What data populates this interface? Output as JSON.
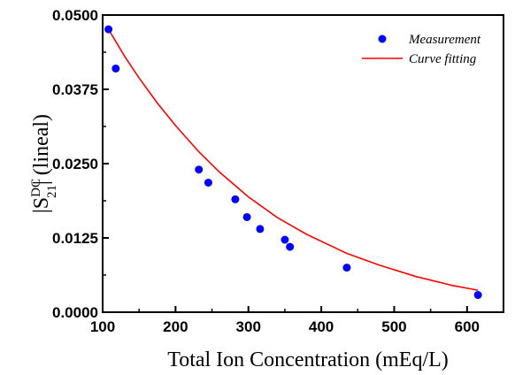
{
  "chart_data": {
    "type": "scatter",
    "xlabel": "Total Ion Concentration (mEq/L)",
    "ylabel": {
      "prefix": "|S",
      "sup": "DC",
      "sub": "21",
      "suffix": "| (lineal)"
    },
    "xlim": [
      100,
      650
    ],
    "ylim": [
      0.0,
      0.05
    ],
    "x_ticks": [
      100,
      200,
      300,
      400,
      500,
      600
    ],
    "x_tick_labels": [
      "100",
      "200",
      "300",
      "400",
      "500",
      "600"
    ],
    "y_ticks": [
      0.0,
      0.0125,
      0.025,
      0.0375,
      0.05
    ],
    "y_tick_labels": [
      "0.0000",
      "0.0125",
      "0.0250",
      "0.0375",
      "0.0500"
    ],
    "grid": false,
    "legend_position": "top-right",
    "series": [
      {
        "name": "Measurement",
        "kind": "scatter",
        "color": "#0000ff",
        "x": [
          108,
          118,
          232,
          245,
          282,
          298,
          316,
          350,
          357,
          435,
          615
        ],
        "y": [
          0.0476,
          0.041,
          0.024,
          0.0218,
          0.019,
          0.016,
          0.014,
          0.0122,
          0.011,
          0.0075,
          0.0029
        ]
      },
      {
        "name": "Curve fitting",
        "kind": "line",
        "color": "#ff0000",
        "x": [
          108,
          130,
          150,
          175,
          200,
          232,
          260,
          300,
          340,
          380,
          435,
          480,
          530,
          580,
          615
        ],
        "y": [
          0.0476,
          0.0431,
          0.0394,
          0.0352,
          0.0314,
          0.027,
          0.0236,
          0.0194,
          0.0159,
          0.0131,
          0.0099,
          0.0079,
          0.006,
          0.0045,
          0.0037
        ]
      }
    ]
  }
}
